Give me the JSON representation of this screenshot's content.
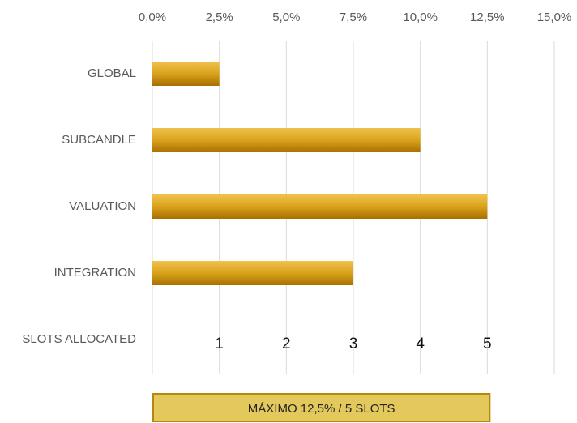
{
  "chart_data": {
    "type": "barh",
    "categories": [
      "GLOBAL",
      "SUBCANDLE",
      "VALUATION",
      "INTEGRATION"
    ],
    "values": [
      2.5,
      10.0,
      12.5,
      7.5
    ],
    "color": "#d4a017",
    "xlim": [
      0,
      15
    ],
    "xticks": [
      {
        "value": 0,
        "label": "0,0%"
      },
      {
        "value": 2.5,
        "label": "2,5%"
      },
      {
        "value": 5,
        "label": "5,0%"
      },
      {
        "value": 7.5,
        "label": "7,5%"
      },
      {
        "value": 10,
        "label": "10,0%"
      },
      {
        "value": 12.5,
        "label": "12,5%"
      },
      {
        "value": 15,
        "label": "15,0%"
      }
    ],
    "grid": true,
    "slot_row_label": "SLOTS ALLOCATED",
    "slot_labels": [
      {
        "value": 2.5,
        "label": "1"
      },
      {
        "value": 5,
        "label": "2"
      },
      {
        "value": 7.5,
        "label": "3"
      },
      {
        "value": 10,
        "label": "4"
      },
      {
        "value": 12.5,
        "label": "5"
      }
    ],
    "annotation": {
      "text": "MÁXIMO 12,5% / 5 SLOTS",
      "range": [
        0,
        12.5
      ]
    }
  }
}
